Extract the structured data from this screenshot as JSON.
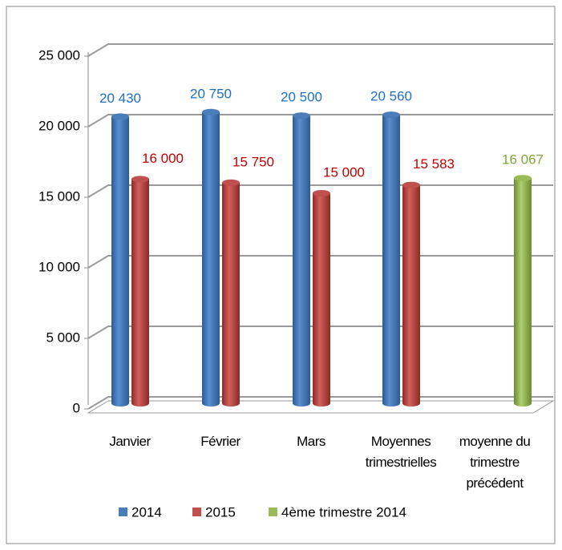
{
  "chart_data": {
    "type": "bar",
    "categories": [
      "Janvier",
      "Février",
      "Mars",
      "Moyennes trimestrielles",
      "moyenne du trimestre précédent"
    ],
    "series": [
      {
        "name": "2014",
        "color": "#4a7ebb",
        "values": [
          20430,
          20750,
          20500,
          20560,
          null
        ],
        "value_labels": [
          "20 430",
          "20 750",
          "20 500",
          "20 560",
          null
        ]
      },
      {
        "name": "2015",
        "color": "#c0504d",
        "values": [
          16000,
          15750,
          15000,
          15583,
          null
        ],
        "value_labels": [
          "16 000",
          "15 750",
          "15 000",
          "15 583",
          null
        ]
      },
      {
        "name": "4ème trimestre 2014",
        "color": "#9bbb59",
        "values": [
          null,
          null,
          null,
          null,
          16067
        ],
        "value_labels": [
          null,
          null,
          null,
          null,
          "16 067"
        ]
      }
    ],
    "ylim": [
      0,
      25000
    ],
    "yticks": [
      0,
      {
        "value": 5000,
        "label": "5 000"
      },
      {
        "value": 10000,
        "label": "10 000"
      },
      {
        "value": 15000,
        "label": "15 000"
      },
      {
        "value": 20000,
        "label": "20 000"
      },
      {
        "value": 25000,
        "label": "25 000"
      }
    ],
    "grid": true
  }
}
